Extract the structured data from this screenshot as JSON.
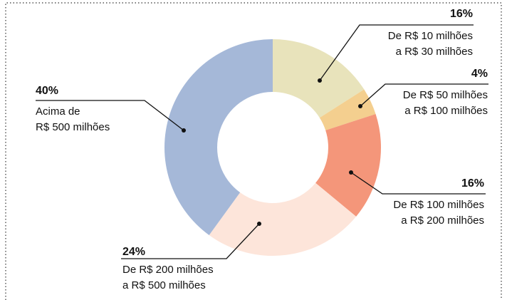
{
  "chart_data": {
    "type": "donut",
    "categories": [
      [
        "De R$ 10 milhões",
        "a R$ 30 milhões"
      ],
      [
        "De R$ 50 milhões",
        "a R$ 100 milhões"
      ],
      [
        "De R$ 100 milhões",
        "a R$ 200 milhões"
      ],
      [
        "De R$ 200 milhões",
        "a R$ 500 milhões"
      ],
      [
        "Acima de",
        "R$ 500 milhões"
      ]
    ],
    "values": [
      16,
      4,
      16,
      24,
      40
    ],
    "value_labels": [
      "16%",
      "4%",
      "16%",
      "24%",
      "40%"
    ],
    "colors": [
      "#e8e3bb",
      "#f4cf8f",
      "#f4967a",
      "#fde5da",
      "#a5b8d8"
    ]
  }
}
